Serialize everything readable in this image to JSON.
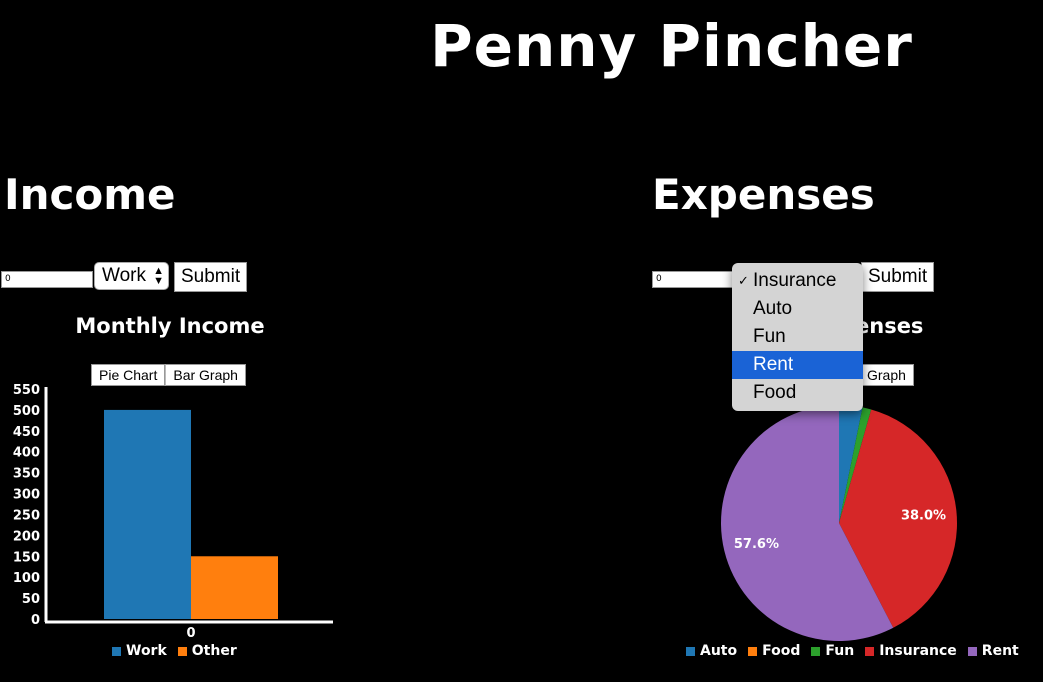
{
  "app": {
    "title": "Penny Pincher"
  },
  "income": {
    "title": "Income",
    "amount_value": "0",
    "category_value": "Work",
    "submit_label": "Submit",
    "chart_title": "Monthly Income",
    "pie_button": "Pie Chart",
    "bar_button": "Bar Graph"
  },
  "expenses": {
    "title": "Expenses",
    "amount_value": "0",
    "submit_label": "Submit",
    "chart_title_visible": "enses",
    "bar_button_visible": "Graph",
    "dropdown": {
      "options": [
        "Insurance",
        "Auto",
        "Fun",
        "Rent",
        "Food"
      ],
      "checked": "Insurance",
      "highlighted": "Rent"
    }
  },
  "chart_data": [
    {
      "type": "bar",
      "title": "Monthly Income",
      "categories": [
        "0"
      ],
      "series": [
        {
          "name": "Work",
          "values": [
            500
          ],
          "color": "#1f77b4"
        },
        {
          "name": "Other",
          "values": [
            150
          ],
          "color": "#ff7f0e"
        }
      ],
      "ylim": [
        0,
        550
      ],
      "yticks": [
        "0",
        "50",
        "100",
        "150",
        "200",
        "250",
        "300",
        "350",
        "400",
        "450",
        "500",
        "550"
      ],
      "legend": "bottom"
    },
    {
      "type": "pie",
      "slices": [
        {
          "name": "Auto",
          "value": 3.2,
          "color": "#1f77b4",
          "label": ""
        },
        {
          "name": "Food",
          "value": 0.0,
          "color": "#ff7f0e",
          "label": ""
        },
        {
          "name": "Fun",
          "value": 1.2,
          "color": "#2ca02c",
          "label": ""
        },
        {
          "name": "Insurance",
          "value": 38.0,
          "color": "#d62728",
          "label": "38.0%"
        },
        {
          "name": "Rent",
          "value": 57.6,
          "color": "#9467bd",
          "label": "57.6%"
        }
      ],
      "legend": "bottom"
    }
  ]
}
